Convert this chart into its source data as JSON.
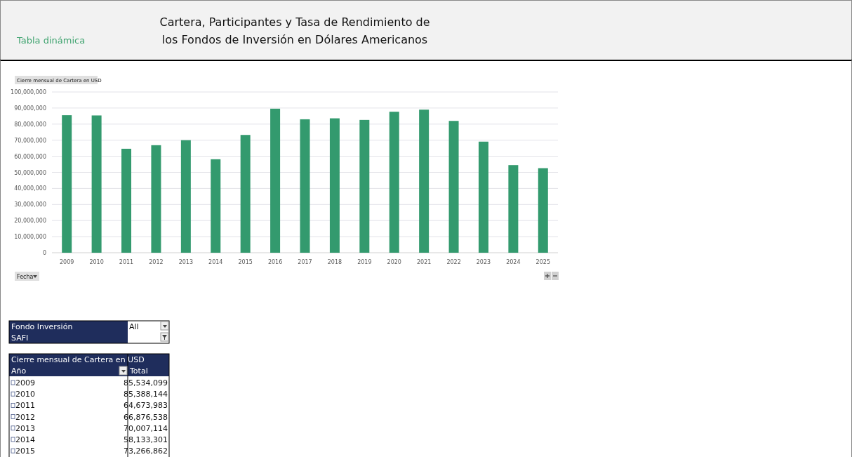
{
  "chart_data": {
    "type": "bar",
    "title": "Cartera, Participantes y Tasa de Rendimiento de los Fondos de Inversión en Dólares Americanos",
    "ylabel": "Cierre mensual de Cartera en USD",
    "xlabel": "Fecha",
    "categories": [
      "2009",
      "2010",
      "2011",
      "2012",
      "2013",
      "2014",
      "2015",
      "2016",
      "2017",
      "2018",
      "2019",
      "2020",
      "2021",
      "2022",
      "2023",
      "2024",
      "2025"
    ],
    "values": [
      85534099,
      85388144,
      64673983,
      66876538,
      70007114,
      58133301,
      73266862,
      89600000,
      83000000,
      83600000,
      82600000,
      87700000,
      89000000,
      82000000,
      69100000,
      54500000,
      52600000
    ],
    "color": "#339a6e",
    "ylim": [
      0,
      100000000
    ],
    "yticks": [
      {
        "value": 0,
        "label": "0"
      },
      {
        "value": 10000000,
        "label": "10,000,000"
      },
      {
        "value": 20000000,
        "label": "20,000,000"
      },
      {
        "value": 30000000,
        "label": "30,000,000"
      },
      {
        "value": 40000000,
        "label": "40,000,000"
      },
      {
        "value": 50000000,
        "label": "50,000,000"
      },
      {
        "value": 60000000,
        "label": "60,000,000"
      },
      {
        "value": 70000000,
        "label": "70,000,000"
      },
      {
        "value": 80000000,
        "label": "80,000,000"
      },
      {
        "value": 90000000,
        "label": "90,000,000"
      },
      {
        "value": 100000000,
        "label": "100,000,000"
      }
    ],
    "grid": "y",
    "annotations": [
      "Tabla dinámica",
      "Fondo Inversión",
      "All",
      "SAFI",
      "Año",
      "Total",
      "85,534,099",
      "85,388,144",
      "64,673,983",
      "66,876,538",
      "70,007,114",
      "58,133,301",
      "73,266,862"
    ]
  }
}
